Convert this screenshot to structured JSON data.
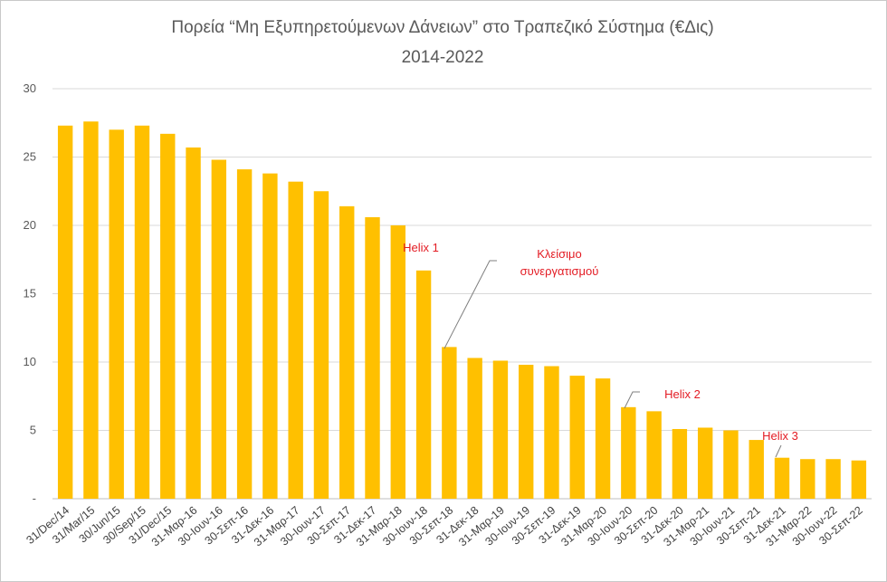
{
  "chart_data": {
    "type": "bar",
    "title": "Πορεία “Μη Εξυπηρετούμενων  Δάνειων” στο Τραπεζικό Σύστημα (€Δις)",
    "subtitle": "2014-2022",
    "xlabel": "",
    "ylabel": "",
    "ylim": [
      0,
      30
    ],
    "y_ticks": [
      {
        "value": 0,
        "label": "-"
      },
      {
        "value": 5,
        "label": "5"
      },
      {
        "value": 10,
        "label": "10"
      },
      {
        "value": 15,
        "label": "15"
      },
      {
        "value": 20,
        "label": "20"
      },
      {
        "value": 25,
        "label": "25"
      },
      {
        "value": 30,
        "label": "30"
      }
    ],
    "grid": true,
    "legend": "none",
    "bar_color": "#FFC000",
    "categories": [
      "31/Dec/14",
      "31/Mar/15",
      "30/Jun/15",
      "30/Sep/15",
      "31/Dec/15",
      "31-Μαρ-16",
      "30-Ιουν-16",
      "30-Σεπ-16",
      "31-Δεκ-16",
      "31-Μαρ-17",
      "30-Ιουν-17",
      "30-Σεπ-17",
      "31-Δεκ-17",
      "31-Μαρ-18",
      "30-Ιουν-18",
      "30-Σεπ-18",
      "31-Δεκ-18",
      "31-Μαρ-19",
      "30-Ιουν-19",
      "30-Σεπ-19",
      "31-Δεκ-19",
      "31-Μαρ-20",
      "30-Ιουν-20",
      "30-Σεπ-20",
      "31-Δεκ-20",
      "31-Μαρ-21",
      "30-Ιουν-21",
      "30-Σεπ-21",
      "31-Δεκ-21",
      "31-Μαρ-22",
      "30-Ιουν-22",
      "30-Σεπ-22"
    ],
    "values": [
      27.3,
      27.6,
      27.0,
      27.3,
      26.7,
      25.7,
      24.8,
      24.1,
      23.8,
      23.2,
      22.5,
      21.4,
      20.6,
      20.0,
      16.7,
      11.1,
      10.3,
      10.1,
      9.8,
      9.7,
      9.0,
      8.8,
      6.7,
      6.4,
      5.1,
      5.2,
      5.0,
      4.3,
      3.0,
      2.9,
      2.9,
      2.8
    ],
    "annotations": [
      {
        "text": "Helix 1",
        "color": "#E31B23",
        "category_index": 14
      },
      {
        "text": "Κλείσιμο",
        "color": "#E31B23",
        "category_index": 15
      },
      {
        "text": "συνεργατισμού",
        "color": "#E31B23",
        "category_index": 15
      },
      {
        "text": "Helix 2",
        "color": "#E31B23",
        "category_index": 22
      },
      {
        "text": "Helix 3",
        "color": "#E31B23",
        "category_index": 28
      }
    ]
  }
}
